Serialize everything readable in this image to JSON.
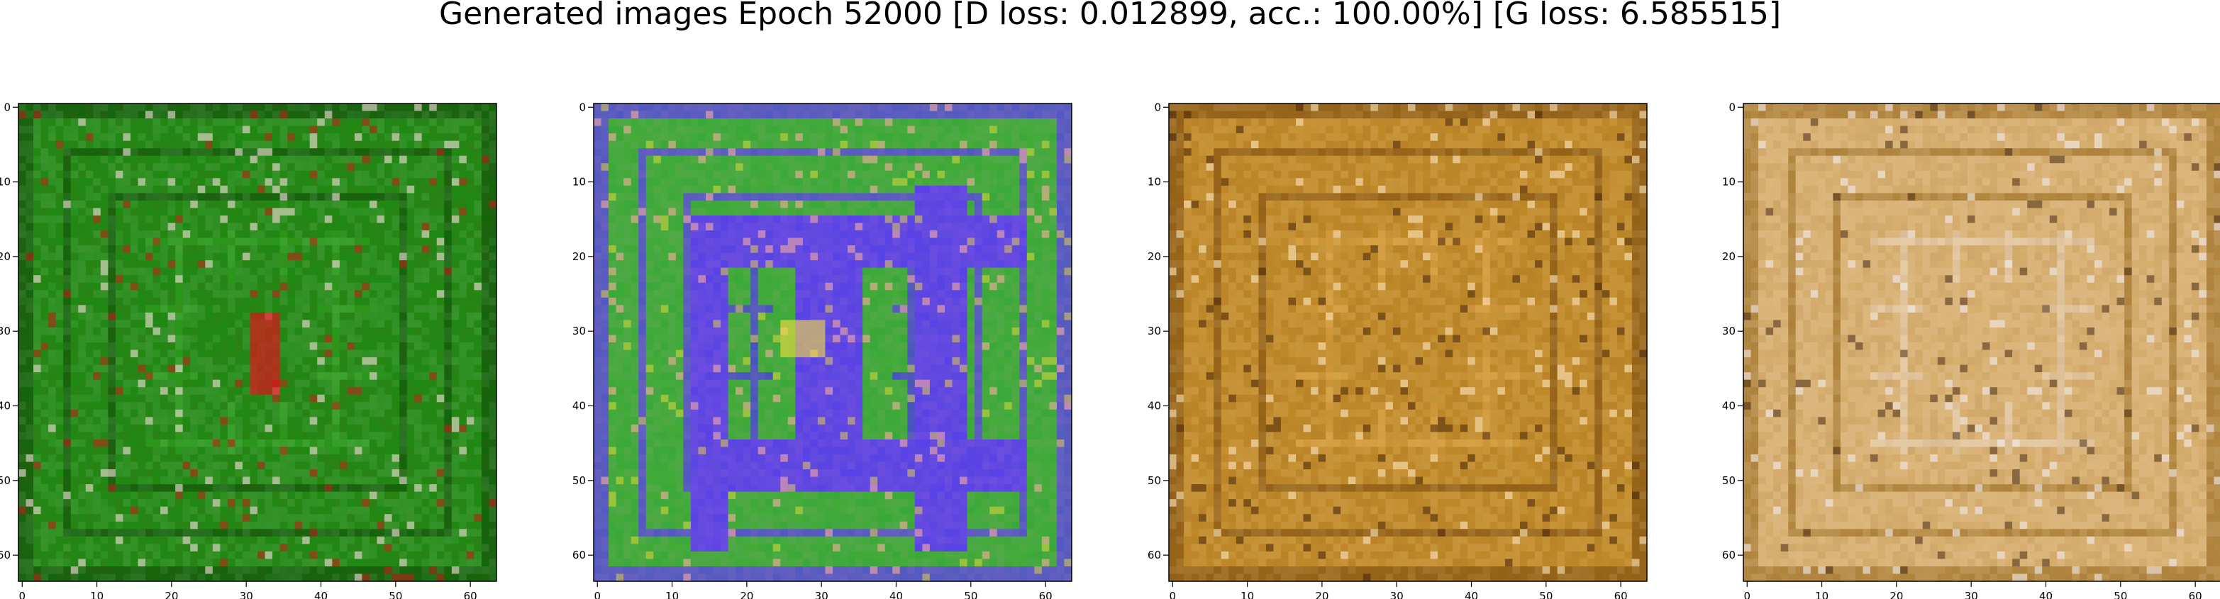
{
  "title": "Generated images Epoch 52000 [D loss: 0.012899, acc.: 100.00%] [G loss: 6.585515]",
  "chart_data": [
    {
      "type": "heatmap",
      "xlim": [
        -0.5,
        63.5
      ],
      "ylim": [
        63.5,
        -0.5
      ],
      "xticks": [
        0,
        10,
        20,
        30,
        40,
        50,
        60
      ],
      "yticks": [
        0,
        10,
        20,
        30,
        40,
        50,
        60
      ],
      "palette": {
        "base": "#1e8a14",
        "frame": "#0f5a0a",
        "inner": "#2aa01c",
        "accent": "#ffe0e0",
        "hot": "#e0101a"
      }
    },
    {
      "type": "heatmap",
      "xlim": [
        -0.5,
        63.5
      ],
      "ylim": [
        63.5,
        -0.5
      ],
      "xticks": [
        0,
        10,
        20,
        30,
        40,
        50,
        60
      ],
      "yticks": [
        0,
        10,
        20,
        30,
        40,
        50,
        60
      ],
      "palette": {
        "base": "#3aa83a",
        "frame": "#5a3cf0",
        "inner": "#4a2ef5",
        "accent": "#ffb0a0",
        "hot": "#f5e040"
      }
    },
    {
      "type": "heatmap",
      "xlim": [
        -0.5,
        63.5
      ],
      "ylim": [
        63.5,
        -0.5
      ],
      "xticks": [
        0,
        10,
        20,
        30,
        40,
        50,
        60
      ],
      "yticks": [
        0,
        10,
        20,
        30,
        40,
        50,
        60
      ],
      "palette": {
        "base": "#c08a2a",
        "frame": "#8a5a14",
        "inner": "#d8a040",
        "accent": "#ffe8c0",
        "hot": "#3a1a08"
      }
    },
    {
      "type": "heatmap",
      "xlim": [
        -0.5,
        63.5
      ],
      "ylim": [
        63.5,
        -0.5
      ],
      "xticks": [
        0,
        10,
        20,
        30,
        40,
        50,
        60
      ],
      "yticks": [
        0,
        10,
        20,
        30,
        40,
        50,
        60
      ],
      "palette": {
        "base": "#d8b070",
        "frame": "#a87a30",
        "inner": "#e8d0b0",
        "accent": "#f4ecf0",
        "hot": "#3a2010"
      }
    }
  ]
}
